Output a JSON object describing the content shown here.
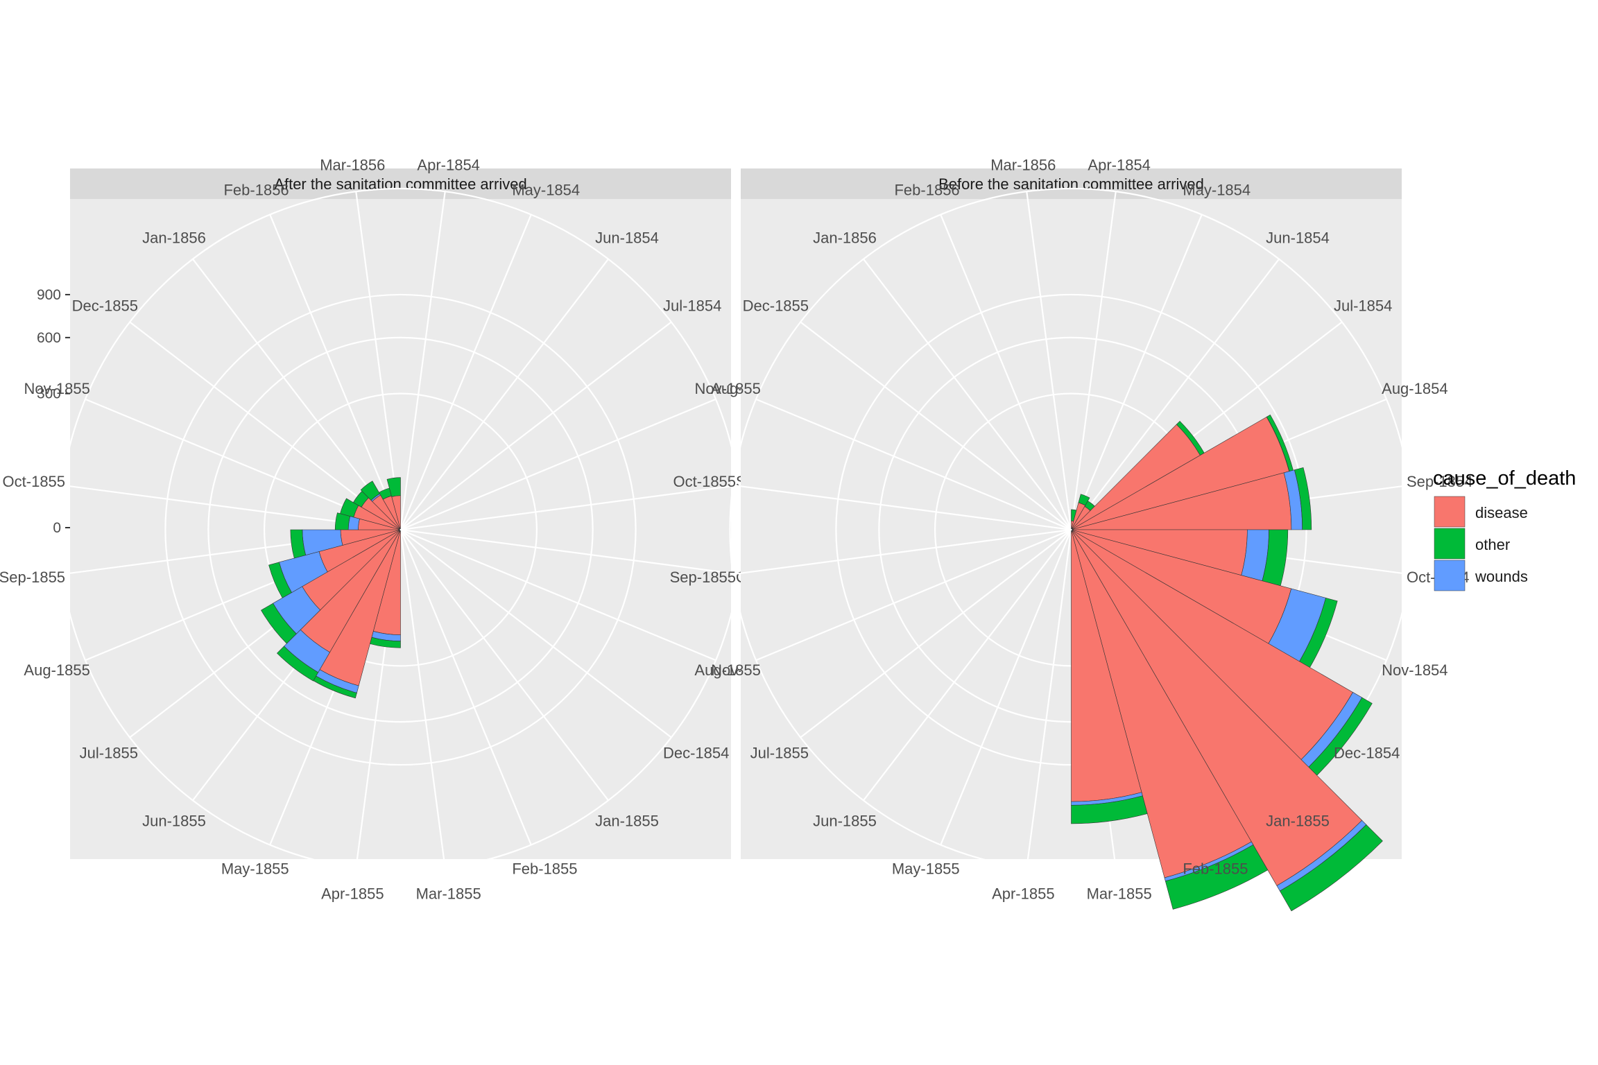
{
  "chart_data": {
    "type": "polar-stacked-bar",
    "facets": [
      "After the sanitation committee arrived",
      "Before the sanitation committee arrived"
    ],
    "months": [
      "Apr-1854",
      "May-1854",
      "Jun-1854",
      "Jul-1854",
      "Aug-1854",
      "Sep-1854",
      "Oct-1854",
      "Nov-1854",
      "Dec-1854",
      "Jan-1855",
      "Feb-1855",
      "Mar-1855",
      "Apr-1855",
      "May-1855",
      "Jun-1855",
      "Jul-1855",
      "Aug-1855",
      "Sep-1855",
      "Oct-1855",
      "Nov-1855",
      "Dec-1855",
      "Jan-1856",
      "Feb-1856",
      "Mar-1856"
    ],
    "radial_ticks": [
      "0",
      "300",
      "600",
      "900"
    ],
    "radial_tick_values": [
      0,
      300,
      600,
      900
    ],
    "radial_max": 1900,
    "stack_order": [
      "disease",
      "wounds",
      "other"
    ],
    "legend": {
      "title": "cause_of_death",
      "items": [
        {
          "label": "disease",
          "color": "#F8766D"
        },
        {
          "label": "other",
          "color": "#00BA38"
        },
        {
          "label": "wounds",
          "color": "#619CFF"
        }
      ]
    },
    "series": [
      {
        "facet": "After the sanitation committee arrived",
        "name": "disease",
        "values": [
          null,
          null,
          null,
          null,
          null,
          null,
          null,
          null,
          null,
          null,
          null,
          null,
          178,
          423,
          324,
          208,
          114,
          57,
          28,
          37,
          32,
          25,
          19,
          18
        ]
      },
      {
        "facet": "After the sanitation committee arrived",
        "name": "wounds",
        "values": [
          null,
          null,
          null,
          null,
          null,
          null,
          null,
          null,
          null,
          null,
          null,
          null,
          22,
          40,
          116,
          143,
          141,
          98,
          15,
          0,
          0,
          2,
          0,
          0
        ]
      },
      {
        "facet": "After the sanitation committee arrived",
        "name": "other",
        "values": [
          null,
          null,
          null,
          null,
          null,
          null,
          null,
          null,
          null,
          null,
          null,
          null,
          25,
          30,
          55,
          69,
          46,
          40,
          25,
          25,
          15,
          23,
          10,
          25
        ]
      },
      {
        "facet": "Before the sanitation committee arrived",
        "name": "disease",
        "values": [
          1,
          12,
          11,
          359,
          828,
          788,
          503,
          844,
          1725,
          2761,
          2120,
          1205,
          null,
          null,
          null,
          null,
          null,
          null,
          null,
          null,
          null,
          null,
          null,
          null
        ]
      },
      {
        "facet": "Before the sanitation committee arrived",
        "name": "wounds",
        "values": [
          0,
          0,
          0,
          0,
          1,
          81,
          132,
          287,
          114,
          83,
          42,
          32,
          null,
          null,
          null,
          null,
          null,
          null,
          null,
          null,
          null,
          null,
          null,
          null
        ]
      },
      {
        "facet": "Before the sanitation committee arrived",
        "name": "other",
        "values": [
          5,
          9,
          6,
          23,
          30,
          70,
          128,
          106,
          131,
          324,
          361,
          172,
          null,
          null,
          null,
          null,
          null,
          null,
          null,
          null,
          null,
          null,
          null,
          null
        ]
      }
    ],
    "colors": {
      "panel_bg": "#EBEBEB",
      "strip_bg": "#D9D9D9",
      "grid": "#FFFFFF",
      "bar_outline": "#333333"
    }
  }
}
